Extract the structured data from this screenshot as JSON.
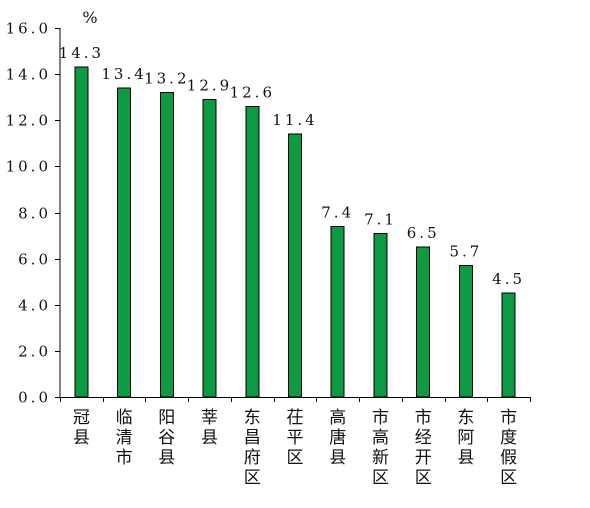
{
  "chart_data": {
    "type": "bar",
    "unit": "%",
    "categories": [
      "冠县",
      "临清市",
      "阳谷县",
      "莘县",
      "东昌府区",
      "茌平区",
      "高唐县",
      "市高新区",
      "市经开区",
      "东阿县",
      "市度假区"
    ],
    "values": [
      14.3,
      13.4,
      13.2,
      12.9,
      12.6,
      11.4,
      7.4,
      7.1,
      6.5,
      5.7,
      4.5
    ],
    "data_labels": [
      "14.3",
      "13.4",
      "13.2",
      "12.9",
      "12.6",
      "11.4",
      "7.4",
      "7.1",
      "6.5",
      "5.7",
      "4.5"
    ],
    "yticks": [
      "0.0",
      "2.0",
      "4.0",
      "6.0",
      "8.0",
      "10.0",
      "12.0",
      "14.0",
      "16.0"
    ],
    "ylim": [
      0,
      16
    ],
    "bar_color": "#0e9a42",
    "grid": false,
    "legend": "none"
  }
}
